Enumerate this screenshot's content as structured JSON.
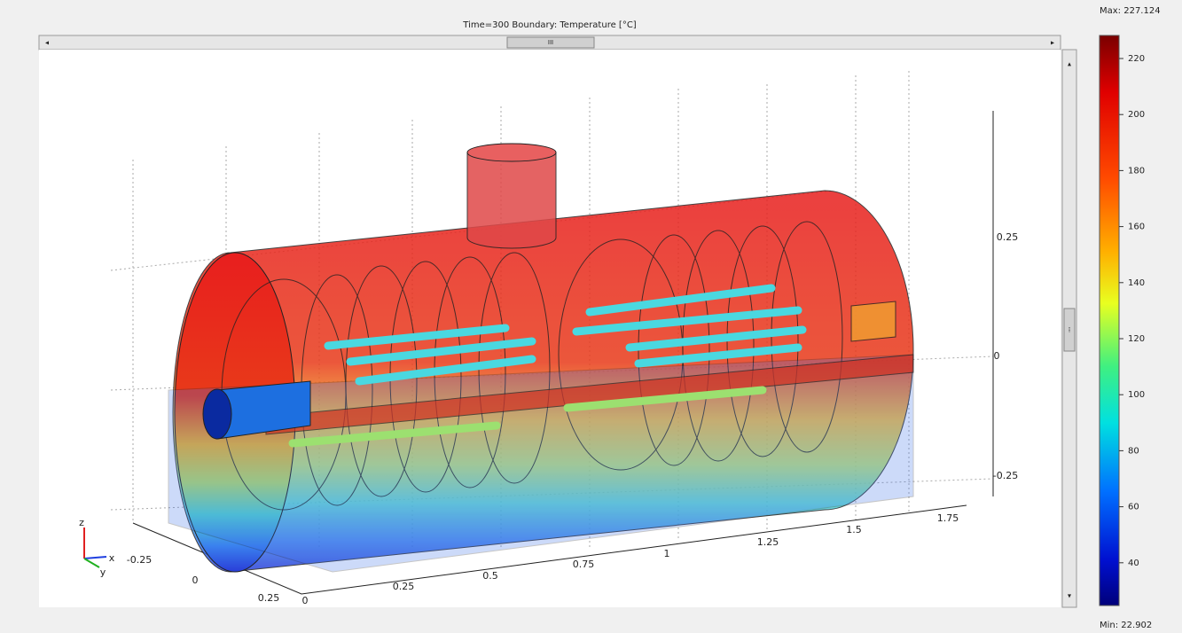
{
  "header": {
    "title": "Time=300   Boundary: Temperature [°C]"
  },
  "colorbar": {
    "max_label": "Max: 227.124",
    "min_label": "Min: 22.902",
    "ticks": [
      220,
      200,
      180,
      160,
      140,
      120,
      100,
      80,
      60,
      40
    ]
  },
  "axes": {
    "z_ticks": [
      "0.25",
      "0",
      "-0.25"
    ],
    "x_ticks": [
      "0",
      "0.25",
      "0.5",
      "0.75",
      "1",
      "1.25",
      "1.5",
      "1.75"
    ],
    "y_ticks": [
      "-0.25",
      "0",
      "0.25"
    ],
    "triad": [
      "z",
      "x",
      "y"
    ]
  },
  "scrollbar": {
    "thumb": "III",
    "left": "◂",
    "right": "▸",
    "up": "▴",
    "down": "▾",
    "side": "⁞"
  }
}
